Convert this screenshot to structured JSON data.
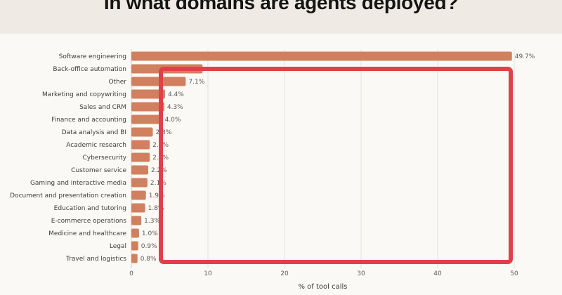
{
  "chart_data": {
    "type": "bar",
    "orientation": "horizontal",
    "title": "In what domains are agents deployed?",
    "xlabel": "% of tool calls",
    "ylabel": "",
    "xlim": [
      0,
      50
    ],
    "xticks": [
      0,
      10,
      20,
      30,
      40,
      50
    ],
    "grid": true,
    "categories": [
      "Software engineering",
      "Back-office automation",
      "Other",
      "Marketing and copywriting",
      "Sales and CRM",
      "Finance and accounting",
      "Data analysis and BI",
      "Academic research",
      "Cybersecurity",
      "Customer service",
      "Gaming and interactive media",
      "Document and presentation creation",
      "Education and tutoring",
      "E-commerce operations",
      "Medicine and healthcare",
      "Legal",
      "Travel and logistics"
    ],
    "values": [
      49.7,
      9.3,
      7.1,
      4.4,
      4.3,
      4.0,
      2.8,
      2.4,
      2.4,
      2.2,
      2.1,
      1.9,
      1.8,
      1.3,
      1.0,
      0.9,
      0.8
    ],
    "value_labels": [
      "49.7%",
      "",
      "7.1%",
      "4.4%",
      "4.3%",
      "4.0%",
      "2.8%",
      "2.4%",
      "2.4%",
      "2.2%",
      "2.1%",
      "1.9%",
      "1.8%",
      "1.3%",
      "1.0%",
      "0.9%",
      "0.8%"
    ],
    "bar_color": "#d0805f",
    "annotation_color": "#e0404a"
  }
}
